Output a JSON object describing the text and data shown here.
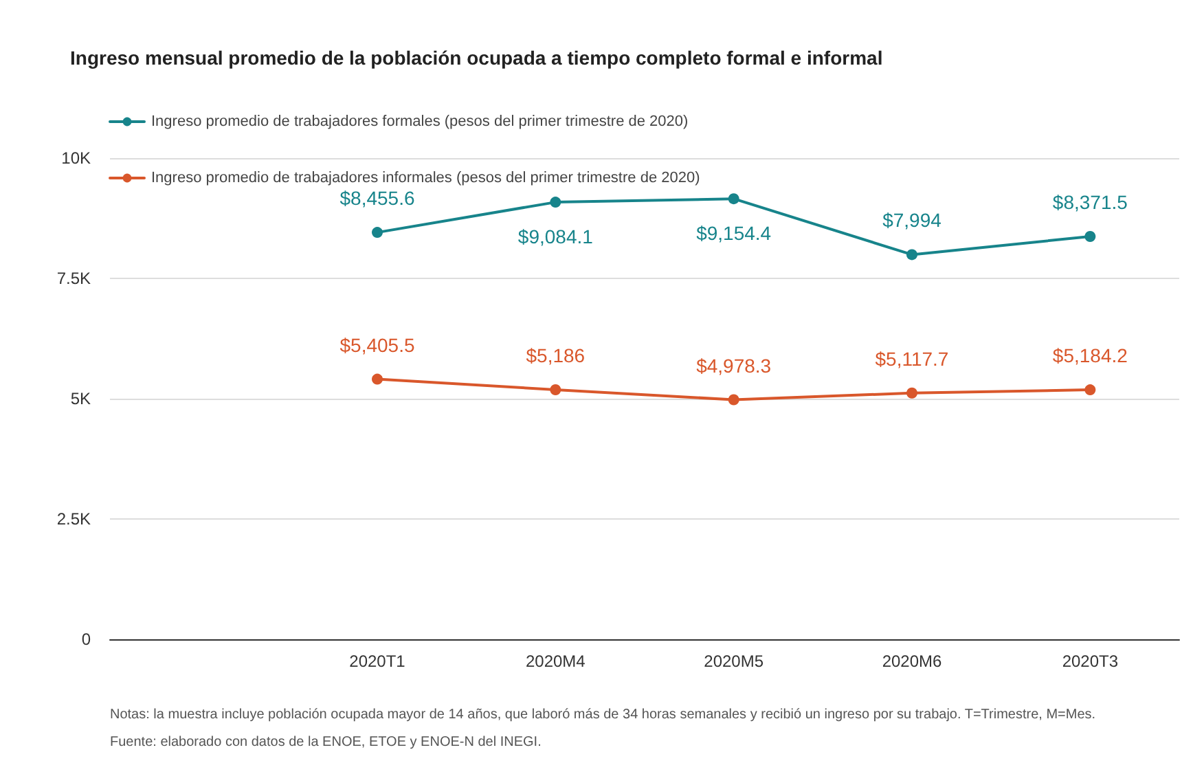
{
  "chart_data": {
    "type": "line",
    "title": "Ingreso mensual promedio de la población ocupada a tiempo completo formal e informal",
    "categories": [
      null,
      "2020T1",
      "2020M4",
      "2020M5",
      "2020M6",
      "2020T3"
    ],
    "series": [
      {
        "name": "Ingreso promedio de trabajadores formales (pesos del primer trimestre de 2020)",
        "color": "#17848b",
        "values": [
          null,
          8455.6,
          9084.1,
          9154.4,
          7994,
          8371.5
        ],
        "value_labels": [
          null,
          "$8,455.6",
          "$9,084.1",
          "$9,154.4",
          "$7,994",
          "$8,371.5"
        ]
      },
      {
        "name": "Ingreso promedio de trabajadores informales (pesos del primer trimestre de 2020)",
        "color": "#d9572b",
        "values": [
          null,
          5405.5,
          5186,
          4978.3,
          5117.7,
          5184.2
        ],
        "value_labels": [
          null,
          "$5,405.5",
          "$5,186",
          "$4,978.3",
          "$5,117.7",
          "$5,184.2"
        ]
      }
    ],
    "ylim": [
      0,
      10000
    ],
    "yticks": [
      0,
      {
        "value": 2500,
        "label": "2.5K"
      },
      {
        "value": 5000,
        "label": "5K"
      },
      {
        "value": 7500,
        "label": "7.5K"
      },
      {
        "value": 10000,
        "label": "10K"
      }
    ],
    "grid": "y",
    "legend": "top left",
    "marker": "circle",
    "line_style": "solid",
    "annotations": [
      "Notas: la muestra incluye población ocupada mayor de 14 años, que laboró más de 34 horas semanales y recibió un ingreso por su trabajo. T=Trimestre, M=Mes.",
      "Fuente: elaborado con datos de la ENOE, ETOE y ENOE-N del INEGI."
    ]
  }
}
